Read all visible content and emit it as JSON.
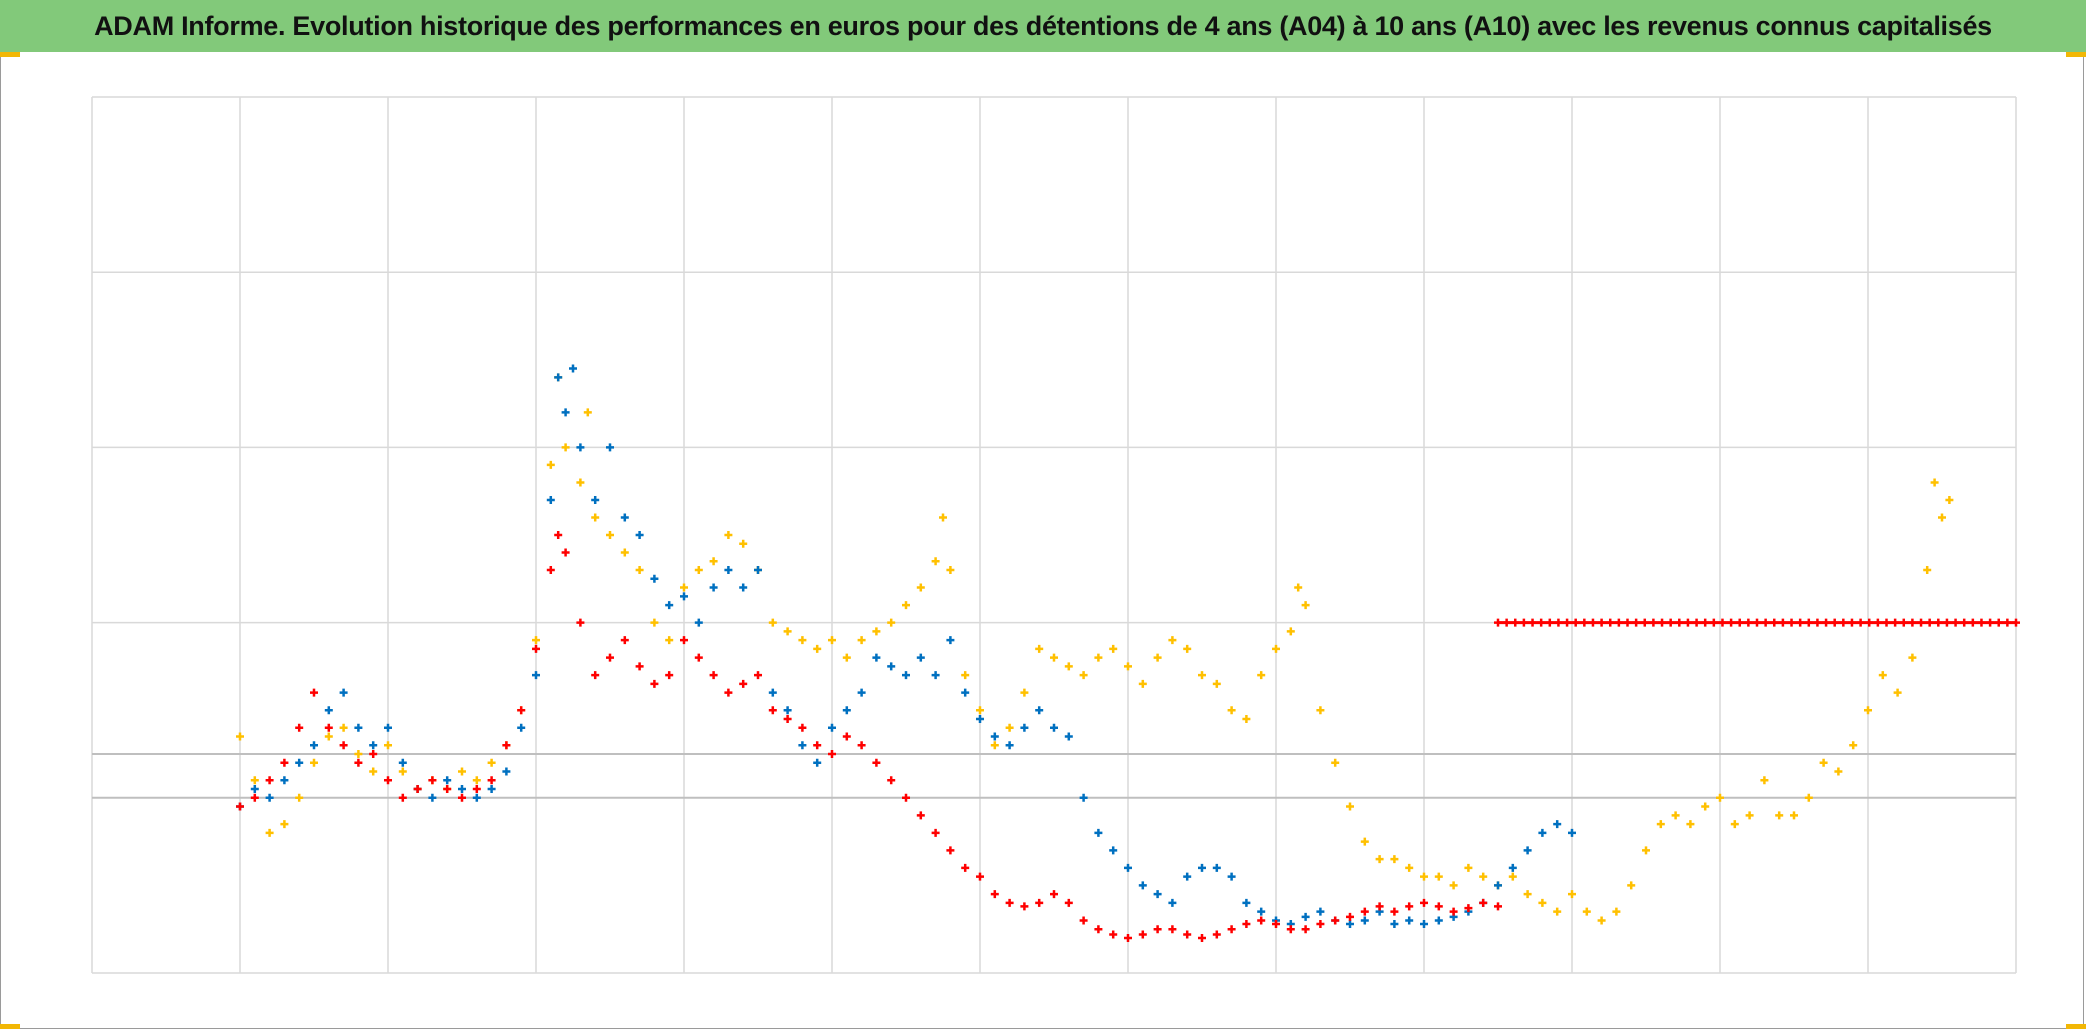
{
  "chart_data": {
    "type": "scatter",
    "title": "ADAM Informe. Evolution historique des performances en euros pour des détentions de 4 ans (A04) à 10 ans (A10) avec les revenus connus capitalisés",
    "xlabel": "",
    "ylabel": "",
    "xlim": [
      0,
      13
    ],
    "ylim": [
      0,
      5
    ],
    "x_gridlines": [
      0,
      1,
      2,
      3,
      4,
      5,
      6,
      7,
      8,
      9,
      10,
      11,
      12,
      13
    ],
    "y_gridlines": [
      0,
      1,
      2,
      3,
      4,
      5
    ],
    "reference_lines": [
      1.0,
      1.25
    ],
    "grid": true,
    "legend": "none",
    "marker": "plus",
    "series": [
      {
        "color": "#ffc000",
        "points": [
          [
            1.0,
            1.35
          ],
          [
            1.1,
            1.1
          ],
          [
            1.2,
            0.8
          ],
          [
            1.3,
            0.85
          ],
          [
            1.4,
            1.0
          ],
          [
            1.5,
            1.2
          ],
          [
            1.6,
            1.35
          ],
          [
            1.7,
            1.4
          ],
          [
            1.8,
            1.25
          ],
          [
            1.9,
            1.15
          ],
          [
            2.0,
            1.3
          ],
          [
            2.1,
            1.15
          ],
          [
            2.2,
            1.05
          ],
          [
            2.3,
            1.1
          ],
          [
            2.4,
            1.05
          ],
          [
            2.5,
            1.15
          ],
          [
            2.6,
            1.1
          ],
          [
            2.7,
            1.2
          ],
          [
            2.8,
            1.3
          ],
          [
            2.9,
            1.5
          ],
          [
            3.0,
            1.9
          ],
          [
            3.1,
            2.9
          ],
          [
            3.15,
            3.4
          ],
          [
            3.2,
            3.0
          ],
          [
            3.3,
            2.8
          ],
          [
            3.35,
            3.2
          ],
          [
            3.4,
            2.6
          ],
          [
            3.5,
            2.5
          ],
          [
            3.6,
            2.4
          ],
          [
            3.7,
            2.3
          ],
          [
            3.8,
            2.0
          ],
          [
            3.9,
            1.9
          ],
          [
            4.0,
            2.2
          ],
          [
            4.1,
            2.3
          ],
          [
            4.2,
            2.35
          ],
          [
            4.3,
            2.5
          ],
          [
            4.4,
            2.45
          ],
          [
            4.5,
            2.3
          ],
          [
            4.6,
            2.0
          ],
          [
            4.7,
            1.95
          ],
          [
            4.8,
            1.9
          ],
          [
            4.9,
            1.85
          ],
          [
            5.0,
            1.9
          ],
          [
            5.1,
            1.8
          ],
          [
            5.2,
            1.9
          ],
          [
            5.3,
            1.95
          ],
          [
            5.4,
            2.0
          ],
          [
            5.5,
            2.1
          ],
          [
            5.6,
            2.2
          ],
          [
            5.7,
            2.35
          ],
          [
            5.75,
            2.6
          ],
          [
            5.8,
            2.3
          ],
          [
            5.9,
            1.7
          ],
          [
            6.0,
            1.5
          ],
          [
            6.1,
            1.3
          ],
          [
            6.2,
            1.4
          ],
          [
            6.3,
            1.6
          ],
          [
            6.4,
            1.85
          ],
          [
            6.5,
            1.8
          ],
          [
            6.6,
            1.75
          ],
          [
            6.7,
            1.7
          ],
          [
            6.8,
            1.8
          ],
          [
            6.9,
            1.85
          ],
          [
            7.0,
            1.75
          ],
          [
            7.1,
            1.65
          ],
          [
            7.2,
            1.8
          ],
          [
            7.3,
            1.9
          ],
          [
            7.4,
            1.85
          ],
          [
            7.5,
            1.7
          ],
          [
            7.6,
            1.65
          ],
          [
            7.7,
            1.5
          ],
          [
            7.8,
            1.45
          ],
          [
            7.9,
            1.7
          ],
          [
            8.0,
            1.85
          ],
          [
            8.1,
            1.95
          ],
          [
            8.15,
            2.2
          ],
          [
            8.2,
            2.1
          ],
          [
            8.3,
            1.5
          ],
          [
            8.4,
            1.2
          ],
          [
            8.5,
            0.95
          ],
          [
            8.6,
            0.75
          ],
          [
            8.7,
            0.65
          ],
          [
            8.8,
            0.65
          ],
          [
            8.9,
            0.6
          ],
          [
            9.0,
            0.55
          ],
          [
            9.1,
            0.55
          ],
          [
            9.2,
            0.5
          ],
          [
            9.3,
            0.6
          ],
          [
            9.4,
            0.55
          ],
          [
            9.5,
            0.5
          ],
          [
            9.6,
            0.55
          ],
          [
            9.7,
            0.45
          ],
          [
            9.8,
            0.4
          ],
          [
            9.9,
            0.35
          ],
          [
            10.0,
            0.45
          ],
          [
            10.1,
            0.35
          ],
          [
            10.2,
            0.3
          ],
          [
            10.3,
            0.35
          ],
          [
            10.4,
            0.5
          ],
          [
            10.5,
            0.7
          ],
          [
            10.6,
            0.85
          ],
          [
            10.7,
            0.9
          ],
          [
            10.8,
            0.85
          ],
          [
            10.9,
            0.95
          ],
          [
            11.0,
            1.0
          ],
          [
            11.1,
            0.85
          ],
          [
            11.2,
            0.9
          ],
          [
            11.3,
            1.1
          ],
          [
            11.4,
            0.9
          ],
          [
            11.5,
            0.9
          ],
          [
            11.6,
            1.0
          ],
          [
            11.7,
            1.2
          ],
          [
            11.8,
            1.15
          ],
          [
            11.9,
            1.3
          ],
          [
            12.0,
            1.5
          ],
          [
            12.1,
            1.7
          ],
          [
            12.2,
            1.6
          ],
          [
            12.3,
            1.8
          ],
          [
            12.4,
            2.3
          ],
          [
            12.45,
            2.8
          ],
          [
            12.5,
            2.6
          ],
          [
            12.55,
            2.7
          ]
        ]
      },
      {
        "color": "#0070c0",
        "points": [
          [
            1.0,
            0.95
          ],
          [
            1.1,
            1.05
          ],
          [
            1.2,
            1.0
          ],
          [
            1.3,
            1.1
          ],
          [
            1.4,
            1.2
          ],
          [
            1.5,
            1.3
          ],
          [
            1.6,
            1.5
          ],
          [
            1.7,
            1.6
          ],
          [
            1.8,
            1.4
          ],
          [
            1.9,
            1.3
          ],
          [
            2.0,
            1.4
          ],
          [
            2.1,
            1.2
          ],
          [
            2.2,
            1.05
          ],
          [
            2.3,
            1.0
          ],
          [
            2.4,
            1.1
          ],
          [
            2.5,
            1.05
          ],
          [
            2.6,
            1.0
          ],
          [
            2.7,
            1.05
          ],
          [
            2.8,
            1.15
          ],
          [
            2.9,
            1.4
          ],
          [
            3.0,
            1.7
          ],
          [
            3.1,
            2.7
          ],
          [
            3.15,
            3.4
          ],
          [
            3.2,
            3.2
          ],
          [
            3.25,
            3.45
          ],
          [
            3.3,
            3.0
          ],
          [
            3.4,
            2.7
          ],
          [
            3.5,
            3.0
          ],
          [
            3.6,
            2.6
          ],
          [
            3.7,
            2.5
          ],
          [
            3.8,
            2.25
          ],
          [
            3.9,
            2.1
          ],
          [
            4.0,
            2.15
          ],
          [
            4.1,
            2.0
          ],
          [
            4.2,
            2.2
          ],
          [
            4.3,
            2.3
          ],
          [
            4.4,
            2.2
          ],
          [
            4.5,
            2.3
          ],
          [
            4.6,
            1.6
          ],
          [
            4.7,
            1.5
          ],
          [
            4.8,
            1.3
          ],
          [
            4.9,
            1.2
          ],
          [
            5.0,
            1.4
          ],
          [
            5.1,
            1.5
          ],
          [
            5.2,
            1.6
          ],
          [
            5.3,
            1.8
          ],
          [
            5.4,
            1.75
          ],
          [
            5.5,
            1.7
          ],
          [
            5.6,
            1.8
          ],
          [
            5.7,
            1.7
          ],
          [
            5.8,
            1.9
          ],
          [
            5.9,
            1.6
          ],
          [
            6.0,
            1.45
          ],
          [
            6.1,
            1.35
          ],
          [
            6.2,
            1.3
          ],
          [
            6.3,
            1.4
          ],
          [
            6.4,
            1.5
          ],
          [
            6.5,
            1.4
          ],
          [
            6.6,
            1.35
          ],
          [
            6.7,
            1.0
          ],
          [
            6.8,
            0.8
          ],
          [
            6.9,
            0.7
          ],
          [
            7.0,
            0.6
          ],
          [
            7.1,
            0.5
          ],
          [
            7.2,
            0.45
          ],
          [
            7.3,
            0.4
          ],
          [
            7.4,
            0.55
          ],
          [
            7.5,
            0.6
          ],
          [
            7.6,
            0.6
          ],
          [
            7.7,
            0.55
          ],
          [
            7.8,
            0.4
          ],
          [
            7.9,
            0.35
          ],
          [
            8.0,
            0.3
          ],
          [
            8.1,
            0.28
          ],
          [
            8.2,
            0.32
          ],
          [
            8.3,
            0.35
          ],
          [
            8.4,
            0.3
          ],
          [
            8.5,
            0.28
          ],
          [
            8.6,
            0.3
          ],
          [
            8.7,
            0.35
          ],
          [
            8.8,
            0.28
          ],
          [
            8.9,
            0.3
          ],
          [
            9.0,
            0.28
          ],
          [
            9.1,
            0.3
          ],
          [
            9.2,
            0.32
          ],
          [
            9.3,
            0.35
          ],
          [
            9.4,
            0.4
          ],
          [
            9.5,
            0.5
          ],
          [
            9.6,
            0.6
          ],
          [
            9.7,
            0.7
          ],
          [
            9.8,
            0.8
          ],
          [
            9.9,
            0.85
          ],
          [
            10.0,
            0.8
          ]
        ]
      },
      {
        "color": "#ff0000",
        "points": [
          [
            1.0,
            0.95
          ],
          [
            1.1,
            1.0
          ],
          [
            1.2,
            1.1
          ],
          [
            1.3,
            1.2
          ],
          [
            1.4,
            1.4
          ],
          [
            1.5,
            1.6
          ],
          [
            1.6,
            1.4
          ],
          [
            1.7,
            1.3
          ],
          [
            1.8,
            1.2
          ],
          [
            1.9,
            1.25
          ],
          [
            2.0,
            1.1
          ],
          [
            2.1,
            1.0
          ],
          [
            2.2,
            1.05
          ],
          [
            2.3,
            1.1
          ],
          [
            2.4,
            1.05
          ],
          [
            2.5,
            1.0
          ],
          [
            2.6,
            1.05
          ],
          [
            2.7,
            1.1
          ],
          [
            2.8,
            1.3
          ],
          [
            2.9,
            1.5
          ],
          [
            3.0,
            1.85
          ],
          [
            3.1,
            2.3
          ],
          [
            3.15,
            2.5
          ],
          [
            3.2,
            2.4
          ],
          [
            3.3,
            2.0
          ],
          [
            3.4,
            1.7
          ],
          [
            3.5,
            1.8
          ],
          [
            3.6,
            1.9
          ],
          [
            3.7,
            1.75
          ],
          [
            3.8,
            1.65
          ],
          [
            3.9,
            1.7
          ],
          [
            4.0,
            1.9
          ],
          [
            4.1,
            1.8
          ],
          [
            4.2,
            1.7
          ],
          [
            4.3,
            1.6
          ],
          [
            4.4,
            1.65
          ],
          [
            4.5,
            1.7
          ],
          [
            4.6,
            1.5
          ],
          [
            4.7,
            1.45
          ],
          [
            4.8,
            1.4
          ],
          [
            4.9,
            1.3
          ],
          [
            5.0,
            1.25
          ],
          [
            5.1,
            1.35
          ],
          [
            5.2,
            1.3
          ],
          [
            5.3,
            1.2
          ],
          [
            5.4,
            1.1
          ],
          [
            5.5,
            1.0
          ],
          [
            5.6,
            0.9
          ],
          [
            5.7,
            0.8
          ],
          [
            5.8,
            0.7
          ],
          [
            5.9,
            0.6
          ],
          [
            6.0,
            0.55
          ],
          [
            6.1,
            0.45
          ],
          [
            6.2,
            0.4
          ],
          [
            6.3,
            0.38
          ],
          [
            6.4,
            0.4
          ],
          [
            6.5,
            0.45
          ],
          [
            6.6,
            0.4
          ],
          [
            6.7,
            0.3
          ],
          [
            6.8,
            0.25
          ],
          [
            6.9,
            0.22
          ],
          [
            7.0,
            0.2
          ],
          [
            7.1,
            0.22
          ],
          [
            7.2,
            0.25
          ],
          [
            7.3,
            0.25
          ],
          [
            7.4,
            0.22
          ],
          [
            7.5,
            0.2
          ],
          [
            7.6,
            0.22
          ],
          [
            7.7,
            0.25
          ],
          [
            7.8,
            0.28
          ],
          [
            7.9,
            0.3
          ],
          [
            8.0,
            0.28
          ],
          [
            8.1,
            0.25
          ],
          [
            8.2,
            0.25
          ],
          [
            8.3,
            0.28
          ],
          [
            8.4,
            0.3
          ],
          [
            8.5,
            0.32
          ],
          [
            8.6,
            0.35
          ],
          [
            8.7,
            0.38
          ],
          [
            8.8,
            0.35
          ],
          [
            8.9,
            0.38
          ],
          [
            9.0,
            0.4
          ],
          [
            9.1,
            0.38
          ],
          [
            9.2,
            0.35
          ],
          [
            9.3,
            0.37
          ],
          [
            9.4,
            0.4
          ],
          [
            9.5,
            0.38
          ]
        ]
      },
      {
        "color": "#ff0000",
        "style": "flat",
        "x_range": [
          9.5,
          13.0
        ],
        "y": 2.0
      }
    ]
  }
}
